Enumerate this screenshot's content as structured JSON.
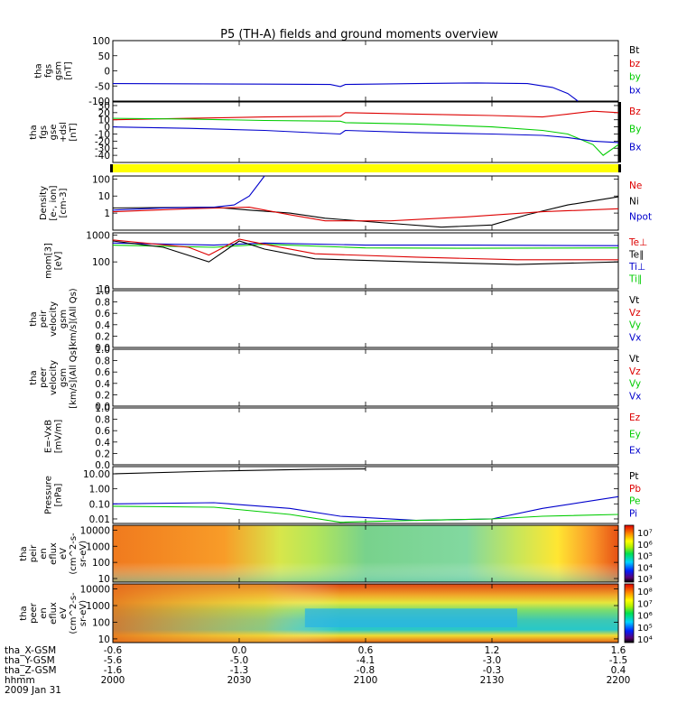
{
  "title": "P5 (TH-A) fields and ground moments overview",
  "colors": {
    "black": "#000000",
    "red": "#dd0000",
    "green": "#00cc00",
    "blue": "#0000cc",
    "yellow": "#ffff00"
  },
  "chart_data": {
    "type": "line",
    "title": "P5 (TH-A) fields and ground moments overview",
    "x": {
      "ticks": [
        {
          "pos": 0,
          "rows": [
            "-0.6",
            "-5.6",
            "-1.6",
            "2000"
          ]
        },
        {
          "pos": 0.25,
          "rows": [
            "0.0",
            "-5.0",
            "-1.3",
            "2030"
          ]
        },
        {
          "pos": 0.5,
          "rows": [
            "0.6",
            "-4.1",
            "-0.8",
            "2100"
          ]
        },
        {
          "pos": 0.75,
          "rows": [
            "1.2",
            "-3.0",
            "-0.3",
            "2130"
          ]
        },
        {
          "pos": 1,
          "rows": [
            "1.6",
            "-1.5",
            "0.4",
            "2200"
          ]
        }
      ],
      "row_labels": [
        "tha_X-GSM",
        "tha_Y-GSM",
        "tha_Z-GSM",
        "hhmm",
        "2009 Jan 31"
      ]
    },
    "panels": [
      {
        "id": "fgs_gsm",
        "ylabel": [
          "tha",
          "fgs",
          "gsm",
          "[nT]"
        ],
        "scale": "linear",
        "ylim": [
          -100,
          100
        ],
        "ticks": [
          "100",
          "50",
          "0",
          "-50",
          "-100"
        ],
        "tickvals": [
          100,
          50,
          0,
          -50,
          -100
        ],
        "legend": [
          {
            "label": "Bt",
            "color": "#000000"
          },
          {
            "label": "bz",
            "color": "#dd0000"
          },
          {
            "label": "by",
            "color": "#00cc00"
          },
          {
            "label": "bx",
            "color": "#0000cc"
          }
        ],
        "series": [
          {
            "name": "bx",
            "color": "#0000cc",
            "points": [
              [
                0,
                -42
              ],
              [
                0.3,
                -44
              ],
              [
                0.43,
                -45
              ],
              [
                0.45,
                -52
              ],
              [
                0.46,
                -45
              ],
              [
                0.6,
                -42
              ],
              [
                0.72,
                -40
              ],
              [
                0.82,
                -42
              ],
              [
                0.87,
                -55
              ],
              [
                0.9,
                -75
              ],
              [
                0.92,
                -100
              ]
            ]
          }
        ]
      },
      {
        "id": "fgs_gse_dsl",
        "ylabel": [
          "tha",
          "fgs",
          "gse",
          "+dsl",
          "[nT]"
        ],
        "scale": "linear",
        "ylim": [
          -50,
          35
        ],
        "ticks": [
          "30",
          "20",
          "10",
          "0",
          "-10",
          "-20",
          "-30",
          "-40"
        ],
        "tickvals": [
          30,
          20,
          10,
          0,
          -10,
          -20,
          -30,
          -40
        ],
        "legend": [
          {
            "label": "Bz",
            "color": "#dd0000"
          },
          {
            "label": "By",
            "color": "#00cc00"
          },
          {
            "label": "Bx",
            "color": "#0000cc"
          }
        ],
        "series": [
          {
            "name": "Bz",
            "color": "#dd0000",
            "points": [
              [
                0,
                10
              ],
              [
                0.15,
                12
              ],
              [
                0.3,
                14
              ],
              [
                0.45,
                15
              ],
              [
                0.46,
                20
              ],
              [
                0.6,
                18
              ],
              [
                0.75,
                16
              ],
              [
                0.85,
                14
              ],
              [
                0.9,
                18
              ],
              [
                0.95,
                22
              ],
              [
                1,
                20
              ]
            ]
          },
          {
            "name": "By",
            "color": "#00cc00",
            "points": [
              [
                0,
                12
              ],
              [
                0.15,
                11
              ],
              [
                0.3,
                9
              ],
              [
                0.45,
                8
              ],
              [
                0.46,
                6
              ],
              [
                0.6,
                4
              ],
              [
                0.75,
                0
              ],
              [
                0.85,
                -5
              ],
              [
                0.9,
                -10
              ],
              [
                0.95,
                -25
              ],
              [
                0.97,
                -40
              ],
              [
                1,
                -25
              ]
            ]
          },
          {
            "name": "Bx",
            "color": "#0000cc",
            "points": [
              [
                0,
                0
              ],
              [
                0.15,
                -2
              ],
              [
                0.3,
                -5
              ],
              [
                0.45,
                -10
              ],
              [
                0.46,
                -5
              ],
              [
                0.6,
                -8
              ],
              [
                0.75,
                -10
              ],
              [
                0.85,
                -12
              ],
              [
                0.9,
                -15
              ],
              [
                0.95,
                -20
              ],
              [
                1,
                -22
              ]
            ]
          }
        ]
      },
      {
        "id": "density",
        "ylabel": [
          "Density",
          "[e-, ion]",
          "[cm-3]"
        ],
        "scale": "log",
        "ylim": [
          0.1,
          150
        ],
        "ticks": [
          "100",
          "10",
          "1"
        ],
        "tickvals": [
          100,
          10,
          1
        ],
        "legend": [
          {
            "label": "Ne",
            "color": "#dd0000"
          },
          {
            "label": "Ni",
            "color": "#000000"
          },
          {
            "label": "Npot",
            "color": "#0000cc"
          }
        ],
        "series": [
          {
            "name": "Ni",
            "color": "#000000",
            "points": [
              [
                0,
                2
              ],
              [
                0.2,
                2.2
              ],
              [
                0.27,
                1.5
              ],
              [
                0.35,
                1
              ],
              [
                0.42,
                0.5
              ],
              [
                0.55,
                0.25
              ],
              [
                0.65,
                0.15
              ],
              [
                0.75,
                0.2
              ],
              [
                0.82,
                0.8
              ],
              [
                0.9,
                3
              ],
              [
                1,
                9
              ]
            ]
          },
          {
            "name": "Ne",
            "color": "#dd0000",
            "points": [
              [
                0,
                1.2
              ],
              [
                0.15,
                1.8
              ],
              [
                0.27,
                2.2
              ],
              [
                0.35,
                0.8
              ],
              [
                0.42,
                0.35
              ],
              [
                0.55,
                0.35
              ],
              [
                0.7,
                0.6
              ],
              [
                0.85,
                1.2
              ],
              [
                1,
                1.8
              ]
            ]
          },
          {
            "name": "Npot",
            "color": "#0000cc",
            "points": [
              [
                0,
                1.5
              ],
              [
                0.1,
                2
              ],
              [
                0.2,
                2.2
              ],
              [
                0.24,
                3
              ],
              [
                0.27,
                10
              ],
              [
                0.29,
                60
              ],
              [
                0.3,
                150
              ]
            ]
          }
        ]
      },
      {
        "id": "mom_temp",
        "ylabel": [
          "mom[3]",
          "[eV]"
        ],
        "scale": "log",
        "ylim": [
          10,
          1200
        ],
        "ticks": [
          "1000",
          "100",
          "10"
        ],
        "tickvals": [
          1000,
          100,
          10
        ],
        "legend": [
          {
            "label": "Te⊥",
            "color": "#dd0000"
          },
          {
            "label": "Te∥",
            "color": "#000000"
          },
          {
            "label": "Ti⊥",
            "color": "#0000cc"
          },
          {
            "label": "Ti∥",
            "color": "#00cc00"
          }
        ],
        "series": [
          {
            "name": "Ti⊥",
            "color": "#0000cc",
            "points": [
              [
                0,
                500
              ],
              [
                0.2,
                420
              ],
              [
                0.3,
                500
              ],
              [
                0.5,
                420
              ],
              [
                0.7,
                420
              ],
              [
                1,
                400
              ]
            ]
          },
          {
            "name": "Ti∥",
            "color": "#00cc00",
            "points": [
              [
                0,
                420
              ],
              [
                0.2,
                350
              ],
              [
                0.3,
                450
              ],
              [
                0.5,
                330
              ],
              [
                0.7,
                320
              ],
              [
                1,
                330
              ]
            ]
          },
          {
            "name": "Te⊥",
            "color": "#dd0000",
            "points": [
              [
                0,
                650
              ],
              [
                0.15,
                350
              ],
              [
                0.19,
                180
              ],
              [
                0.25,
                700
              ],
              [
                0.3,
                450
              ],
              [
                0.4,
                200
              ],
              [
                0.6,
                150
              ],
              [
                0.8,
                120
              ],
              [
                1,
                120
              ]
            ]
          },
          {
            "name": "Te∥",
            "color": "#000000",
            "points": [
              [
                0,
                600
              ],
              [
                0.1,
                350
              ],
              [
                0.19,
                100
              ],
              [
                0.25,
                600
              ],
              [
                0.3,
                300
              ],
              [
                0.4,
                130
              ],
              [
                0.6,
                100
              ],
              [
                0.8,
                80
              ],
              [
                1,
                100
              ]
            ]
          }
        ]
      },
      {
        "id": "peir_velocity",
        "ylabel": [
          "tha",
          "peir",
          "velocity",
          "gsm",
          "[km/s](All Qs)"
        ],
        "scale": "linear",
        "ylim": [
          0,
          1
        ],
        "ticks": [
          "1.0",
          "0.8",
          "0.6",
          "0.4",
          "0.2",
          "0.0"
        ],
        "tickvals": [
          1,
          0.8,
          0.6,
          0.4,
          0.2,
          0
        ],
        "legend": [
          {
            "label": "Vt",
            "color": "#000000"
          },
          {
            "label": "Vz",
            "color": "#dd0000"
          },
          {
            "label": "Vy",
            "color": "#00cc00"
          },
          {
            "label": "Vx",
            "color": "#0000cc"
          }
        ],
        "series": []
      },
      {
        "id": "peer_velocity",
        "ylabel": [
          "tha",
          "peer",
          "velocity",
          "gsm",
          "[km/s](All Qs)"
        ],
        "scale": "linear",
        "ylim": [
          0,
          1
        ],
        "ticks": [
          "1.0",
          "0.8",
          "0.6",
          "0.4",
          "0.2",
          "0.0"
        ],
        "tickvals": [
          1,
          0.8,
          0.6,
          0.4,
          0.2,
          0
        ],
        "legend": [
          {
            "label": "Vt",
            "color": "#000000"
          },
          {
            "label": "Vz",
            "color": "#dd0000"
          },
          {
            "label": "Vy",
            "color": "#00cc00"
          },
          {
            "label": "Vx",
            "color": "#0000cc"
          }
        ],
        "series": []
      },
      {
        "id": "efield",
        "ylabel": [
          "E=-VxB",
          "[mV/m]"
        ],
        "scale": "linear",
        "ylim": [
          0,
          1
        ],
        "ticks": [
          "1.0",
          "0.8",
          "0.6",
          "0.4",
          "0.2",
          "0.0"
        ],
        "tickvals": [
          1,
          0.8,
          0.6,
          0.4,
          0.2,
          0
        ],
        "legend": [
          {
            "label": "Ez",
            "color": "#dd0000"
          },
          {
            "label": "Ey",
            "color": "#00cc00"
          },
          {
            "label": "Ex",
            "color": "#0000cc"
          }
        ],
        "series": []
      },
      {
        "id": "pressure",
        "ylabel": [
          "Pressure",
          "[nPa]"
        ],
        "scale": "log",
        "ylim": [
          0.005,
          30
        ],
        "ticks": [
          "10.00",
          "1.00",
          "0.10",
          "0.01"
        ],
        "tickvals": [
          10,
          1,
          0.1,
          0.01
        ],
        "legend": [
          {
            "label": "Pt",
            "color": "#000000"
          },
          {
            "label": "Pb",
            "color": "#dd0000"
          },
          {
            "label": "Pe",
            "color": "#00cc00"
          },
          {
            "label": "Pi",
            "color": "#0000cc"
          }
        ],
        "series": [
          {
            "name": "Pt",
            "color": "#000000",
            "points": [
              [
                0,
                10
              ],
              [
                0.2,
                15
              ],
              [
                0.4,
                20
              ],
              [
                0.5,
                21
              ]
            ]
          },
          {
            "name": "Pi",
            "color": "#0000cc",
            "points": [
              [
                0,
                0.1
              ],
              [
                0.2,
                0.12
              ],
              [
                0.35,
                0.05
              ],
              [
                0.45,
                0.015
              ],
              [
                0.6,
                0.008
              ],
              [
                0.75,
                0.01
              ],
              [
                0.85,
                0.05
              ],
              [
                1,
                0.3
              ]
            ]
          },
          {
            "name": "Pe",
            "color": "#00cc00",
            "points": [
              [
                0,
                0.07
              ],
              [
                0.2,
                0.06
              ],
              [
                0.35,
                0.02
              ],
              [
                0.45,
                0.006
              ],
              [
                0.6,
                0.008
              ],
              [
                0.75,
                0.01
              ],
              [
                0.85,
                0.015
              ],
              [
                1,
                0.02
              ]
            ]
          }
        ]
      },
      {
        "id": "peir_eflux",
        "type": "heatmap",
        "ylabel": [
          "tha",
          "peir",
          "en",
          "eflux",
          "eV",
          "(cm^2-s-",
          "sr-eV)"
        ],
        "scale": "log",
        "ylim": [
          6,
          20000
        ],
        "ticks": [
          "10000",
          "1000",
          "100",
          "10"
        ],
        "tickvals": [
          10000,
          1000,
          100,
          10
        ],
        "colorbar": {
          "labels": [
            "10⁷",
            "10⁶",
            "10⁵",
            "10⁴",
            "10³"
          ],
          "range": [
            1000,
            10000000
          ]
        }
      },
      {
        "id": "peer_eflux",
        "type": "heatmap",
        "ylabel": [
          "tha",
          "peer",
          "en",
          "eflux",
          "eV",
          "(cm^2-s-",
          "sr-eV)"
        ],
        "scale": "log",
        "ylim": [
          6,
          20000
        ],
        "ticks": [
          "10000",
          "1000",
          "100",
          "10"
        ],
        "tickvals": [
          10000,
          1000,
          100,
          10
        ],
        "colorbar": {
          "labels": [
            "10⁸",
            "10⁷",
            "10⁶",
            "10⁵",
            "10⁴"
          ],
          "range": [
            10000,
            100000000
          ]
        }
      }
    ]
  }
}
